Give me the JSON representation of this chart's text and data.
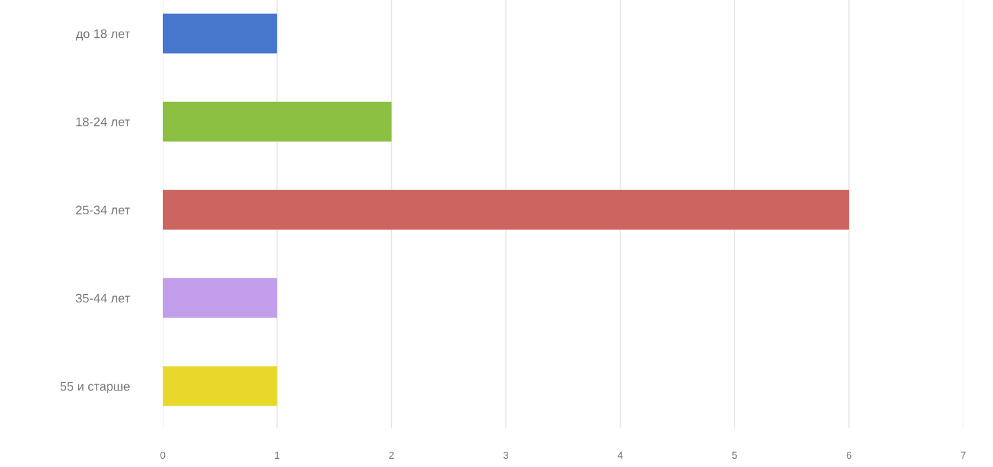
{
  "chart_data": {
    "type": "bar",
    "orientation": "horizontal",
    "categories": [
      "до 18 лет",
      "18-24 лет",
      "25-34 лет",
      "35-44 лет",
      "55 и старше"
    ],
    "values": [
      1,
      2,
      6,
      1,
      1
    ],
    "colors": [
      "#4677cd",
      "#8bc043",
      "#cc6560",
      "#c29deb",
      "#e8d82b"
    ],
    "xlim": [
      0,
      7
    ],
    "xticks": [
      0,
      1,
      2,
      3,
      4,
      5,
      6,
      7
    ],
    "grid": "x",
    "legend": false
  }
}
